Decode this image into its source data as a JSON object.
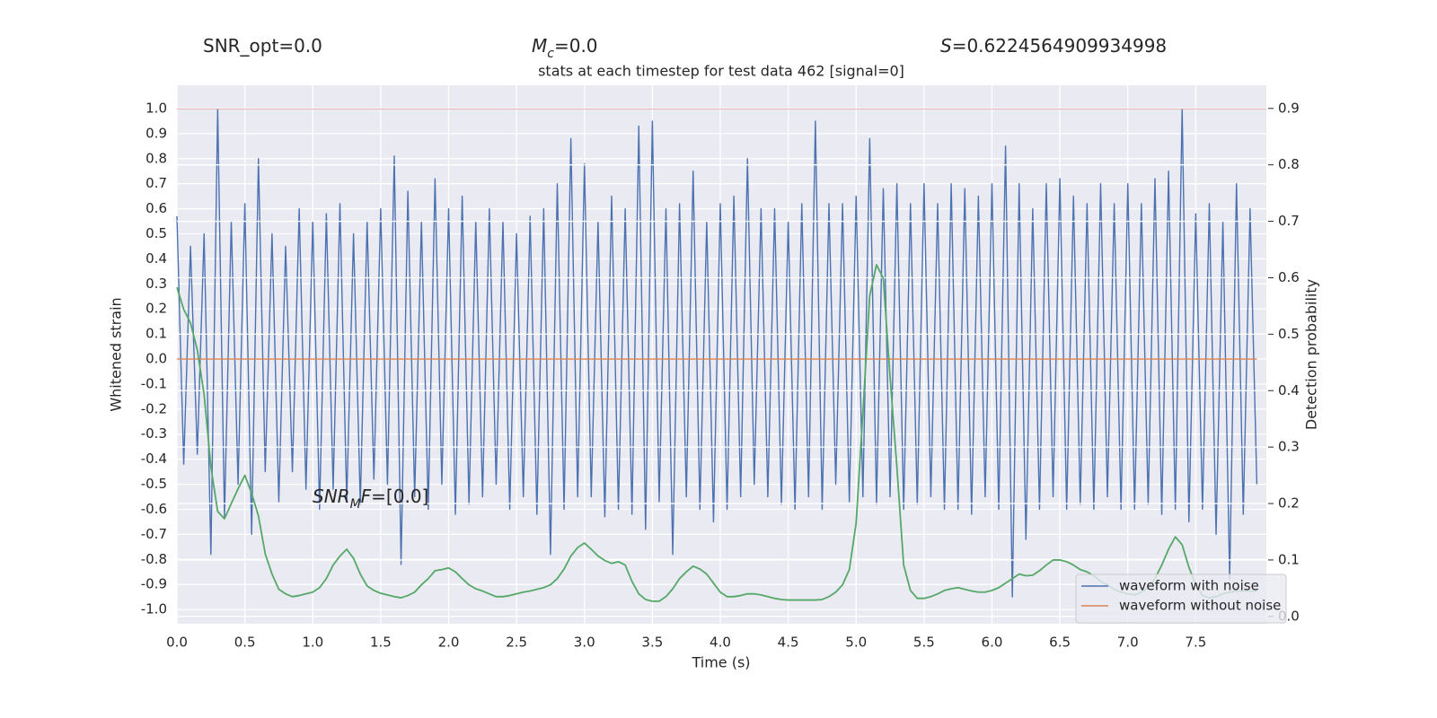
{
  "chart_data": {
    "type": "line",
    "title": "stats at each timestep for test data 462 [signal=0]",
    "stats": [
      [
        {
          "text": "SNR_opt=0.0"
        }
      ],
      [
        {
          "text": "M",
          "italic": true
        },
        {
          "text": "c",
          "italic": true,
          "sub": true
        },
        {
          "text": "=0.0"
        }
      ],
      [
        {
          "text": "S",
          "italic": true
        },
        {
          "text": "=0.6224564909934998"
        }
      ]
    ],
    "annotation": [
      {
        "text": "SNR",
        "italic": true
      },
      {
        "text": "M",
        "italic": true,
        "sub": true
      },
      {
        "text": "F",
        "italic": true
      },
      {
        "text": "=[0.0]"
      }
    ],
    "xlabel": "Time (s)",
    "ylabel": "Whitened strain",
    "y2label": "Detection probability",
    "x": [
      0,
      0.05,
      0.1,
      0.15,
      0.2,
      0.25,
      0.3,
      0.35,
      0.4,
      0.45,
      0.5,
      0.55,
      0.6,
      0.65,
      0.7,
      0.75,
      0.8,
      0.85,
      0.9,
      0.95,
      1,
      1.05,
      1.1,
      1.15,
      1.2,
      1.25,
      1.3,
      1.35,
      1.4,
      1.45,
      1.5,
      1.55,
      1.6,
      1.65,
      1.7,
      1.75,
      1.8,
      1.85,
      1.9,
      1.95,
      2,
      2.05,
      2.1,
      2.15,
      2.2,
      2.25,
      2.3,
      2.35,
      2.4,
      2.45,
      2.5,
      2.55,
      2.6,
      2.65,
      2.7,
      2.75,
      2.8,
      2.85,
      2.9,
      2.95,
      3,
      3.05,
      3.1,
      3.15,
      3.2,
      3.25,
      3.3,
      3.35,
      3.4,
      3.45,
      3.5,
      3.55,
      3.6,
      3.65,
      3.7,
      3.75,
      3.8,
      3.85,
      3.9,
      3.95,
      4,
      4.05,
      4.1,
      4.15,
      4.2,
      4.25,
      4.3,
      4.35,
      4.4,
      4.45,
      4.5,
      4.55,
      4.6,
      4.65,
      4.7,
      4.75,
      4.8,
      4.85,
      4.9,
      4.95,
      5,
      5.05,
      5.1,
      5.15,
      5.2,
      5.25,
      5.3,
      5.35,
      5.4,
      5.45,
      5.5,
      5.55,
      5.6,
      5.65,
      5.7,
      5.75,
      5.8,
      5.85,
      5.9,
      5.95,
      6,
      6.05,
      6.1,
      6.15,
      6.2,
      6.25,
      6.3,
      6.35,
      6.4,
      6.45,
      6.5,
      6.55,
      6.6,
      6.65,
      6.7,
      6.75,
      6.8,
      6.85,
      6.9,
      6.95,
      7,
      7.05,
      7.1,
      7.15,
      7.2,
      7.25,
      7.3,
      7.35,
      7.4,
      7.45,
      7.5,
      7.55,
      7.6,
      7.65,
      7.7,
      7.75,
      7.8,
      7.85,
      7.9,
      7.95
    ],
    "series": [
      {
        "name": "waveform with noise",
        "color": "#4c72b0",
        "values": [
          0.57,
          -0.42,
          0.45,
          -0.38,
          0.5,
          -0.78,
          1.0,
          -0.63,
          0.55,
          -0.5,
          0.62,
          -0.7,
          0.8,
          -0.45,
          0.5,
          -0.57,
          0.45,
          -0.45,
          0.6,
          -0.52,
          0.55,
          -0.6,
          0.58,
          -0.52,
          0.62,
          -0.57,
          0.5,
          -0.58,
          0.55,
          -0.48,
          0.6,
          -0.5,
          0.81,
          -0.82,
          0.67,
          -0.55,
          0.55,
          -0.6,
          0.72,
          -0.5,
          0.6,
          -0.62,
          0.65,
          -0.58,
          0.55,
          -0.55,
          0.6,
          -0.5,
          0.55,
          -0.6,
          0.5,
          -0.55,
          0.57,
          -0.62,
          0.6,
          -0.78,
          0.7,
          -0.6,
          0.88,
          -0.55,
          0.78,
          -0.55,
          0.55,
          -0.63,
          0.65,
          -0.6,
          0.6,
          -0.62,
          0.93,
          -0.68,
          0.95,
          -0.57,
          0.6,
          -0.78,
          0.62,
          -0.55,
          0.75,
          -0.6,
          0.55,
          -0.65,
          0.62,
          -0.6,
          0.65,
          -0.55,
          0.8,
          -0.5,
          0.6,
          -0.55,
          0.6,
          -0.58,
          0.55,
          -0.6,
          0.62,
          -0.55,
          0.95,
          -0.6,
          0.62,
          -0.5,
          0.62,
          -0.57,
          0.65,
          -0.55,
          0.88,
          -0.58,
          0.68,
          -0.55,
          0.7,
          -0.6,
          0.62,
          -0.58,
          0.7,
          -0.55,
          0.62,
          -0.6,
          0.7,
          -0.6,
          0.68,
          -0.62,
          0.65,
          -0.55,
          0.7,
          -0.6,
          0.85,
          -0.95,
          0.7,
          -0.72,
          0.6,
          -0.6,
          0.7,
          -0.55,
          0.72,
          -0.6,
          0.65,
          -0.58,
          0.62,
          -0.6,
          0.7,
          -0.55,
          0.62,
          -0.6,
          0.7,
          -0.6,
          0.62,
          -0.58,
          0.72,
          -0.62,
          0.75,
          -0.6,
          1.0,
          -0.65,
          0.58,
          -0.6,
          0.62,
          -0.7,
          0.55,
          -0.88,
          0.7,
          -0.62,
          0.6,
          -0.5
        ]
      },
      {
        "name": "waveform without noise",
        "color": "#dd8452",
        "x": [
          0,
          7.95
        ],
        "values": [
          0,
          0
        ]
      },
      {
        "color": "#55a868",
        "axis": "y2",
        "values": [
          0.583,
          0.544,
          0.52,
          0.472,
          0.393,
          0.265,
          0.186,
          0.173,
          0.2,
          0.226,
          0.25,
          0.218,
          0.178,
          0.111,
          0.075,
          0.048,
          0.04,
          0.035,
          0.037,
          0.04,
          0.043,
          0.051,
          0.067,
          0.091,
          0.107,
          0.119,
          0.103,
          0.075,
          0.054,
          0.046,
          0.041,
          0.038,
          0.035,
          0.033,
          0.037,
          0.043,
          0.056,
          0.067,
          0.081,
          0.083,
          0.086,
          0.079,
          0.067,
          0.056,
          0.049,
          0.045,
          0.04,
          0.035,
          0.035,
          0.037,
          0.04,
          0.043,
          0.045,
          0.048,
          0.051,
          0.056,
          0.067,
          0.084,
          0.107,
          0.122,
          0.13,
          0.119,
          0.107,
          0.099,
          0.094,
          0.097,
          0.091,
          0.062,
          0.04,
          0.03,
          0.027,
          0.027,
          0.035,
          0.049,
          0.067,
          0.079,
          0.089,
          0.084,
          0.075,
          0.059,
          0.043,
          0.035,
          0.035,
          0.037,
          0.04,
          0.04,
          0.038,
          0.035,
          0.032,
          0.03,
          0.029,
          0.029,
          0.029,
          0.029,
          0.029,
          0.03,
          0.035,
          0.043,
          0.056,
          0.083,
          0.165,
          0.361,
          0.568,
          0.623,
          0.599,
          0.424,
          0.265,
          0.091,
          0.046,
          0.032,
          0.032,
          0.035,
          0.04,
          0.046,
          0.049,
          0.051,
          0.048,
          0.045,
          0.043,
          0.043,
          0.046,
          0.051,
          0.059,
          0.067,
          0.075,
          0.072,
          0.073,
          0.081,
          0.091,
          0.1,
          0.1,
          0.097,
          0.091,
          0.083,
          0.079,
          0.072,
          0.062,
          0.056,
          0.048,
          0.043,
          0.04,
          0.038,
          0.043,
          0.051,
          0.067,
          0.091,
          0.119,
          0.141,
          0.127,
          0.087,
          0.056,
          0.037,
          0.033,
          0.035,
          0.04,
          0.043,
          0.045,
          0.045,
          0.045,
          0.045
        ]
      }
    ],
    "hlines": [
      {
        "value": 1.0,
        "color": "#c44e52"
      }
    ],
    "xlim": [
      0,
      8.02
    ],
    "xticks": [
      {
        "value": 0,
        "label": "0.0"
      },
      0.5,
      {
        "value": 1,
        "label": "1.0"
      },
      1.5,
      {
        "value": 2,
        "label": "2.0"
      },
      2.5,
      {
        "value": 3,
        "label": "3.0"
      },
      3.5,
      {
        "value": 4,
        "label": "4.0"
      },
      4.5,
      {
        "value": 5,
        "label": "5.0"
      },
      5.5,
      {
        "value": 6,
        "label": "6.0"
      },
      6.5,
      {
        "value": 7,
        "label": "7.0"
      },
      7.5
    ],
    "ylim": [
      -1.057,
      1.093
    ],
    "yticks": [
      {
        "value": -1,
        "label": "-1.0"
      },
      -0.9,
      -0.8,
      -0.7,
      -0.6,
      -0.5,
      -0.4,
      -0.3,
      -0.2,
      -0.1,
      {
        "value": 0,
        "label": "0.0"
      },
      0.1,
      0.2,
      0.3,
      0.4,
      0.5,
      0.6,
      0.7,
      0.8,
      0.9,
      {
        "value": 1,
        "label": "1.0"
      }
    ],
    "y2lim": [
      -0.013,
      0.941
    ],
    "y2ticks": [
      {
        "value": 0,
        "label": "0.0"
      },
      0.1,
      0.2,
      0.3,
      0.4,
      0.5,
      0.6,
      0.7,
      0.8,
      0.9
    ],
    "grid": true,
    "legend": "lower right"
  }
}
